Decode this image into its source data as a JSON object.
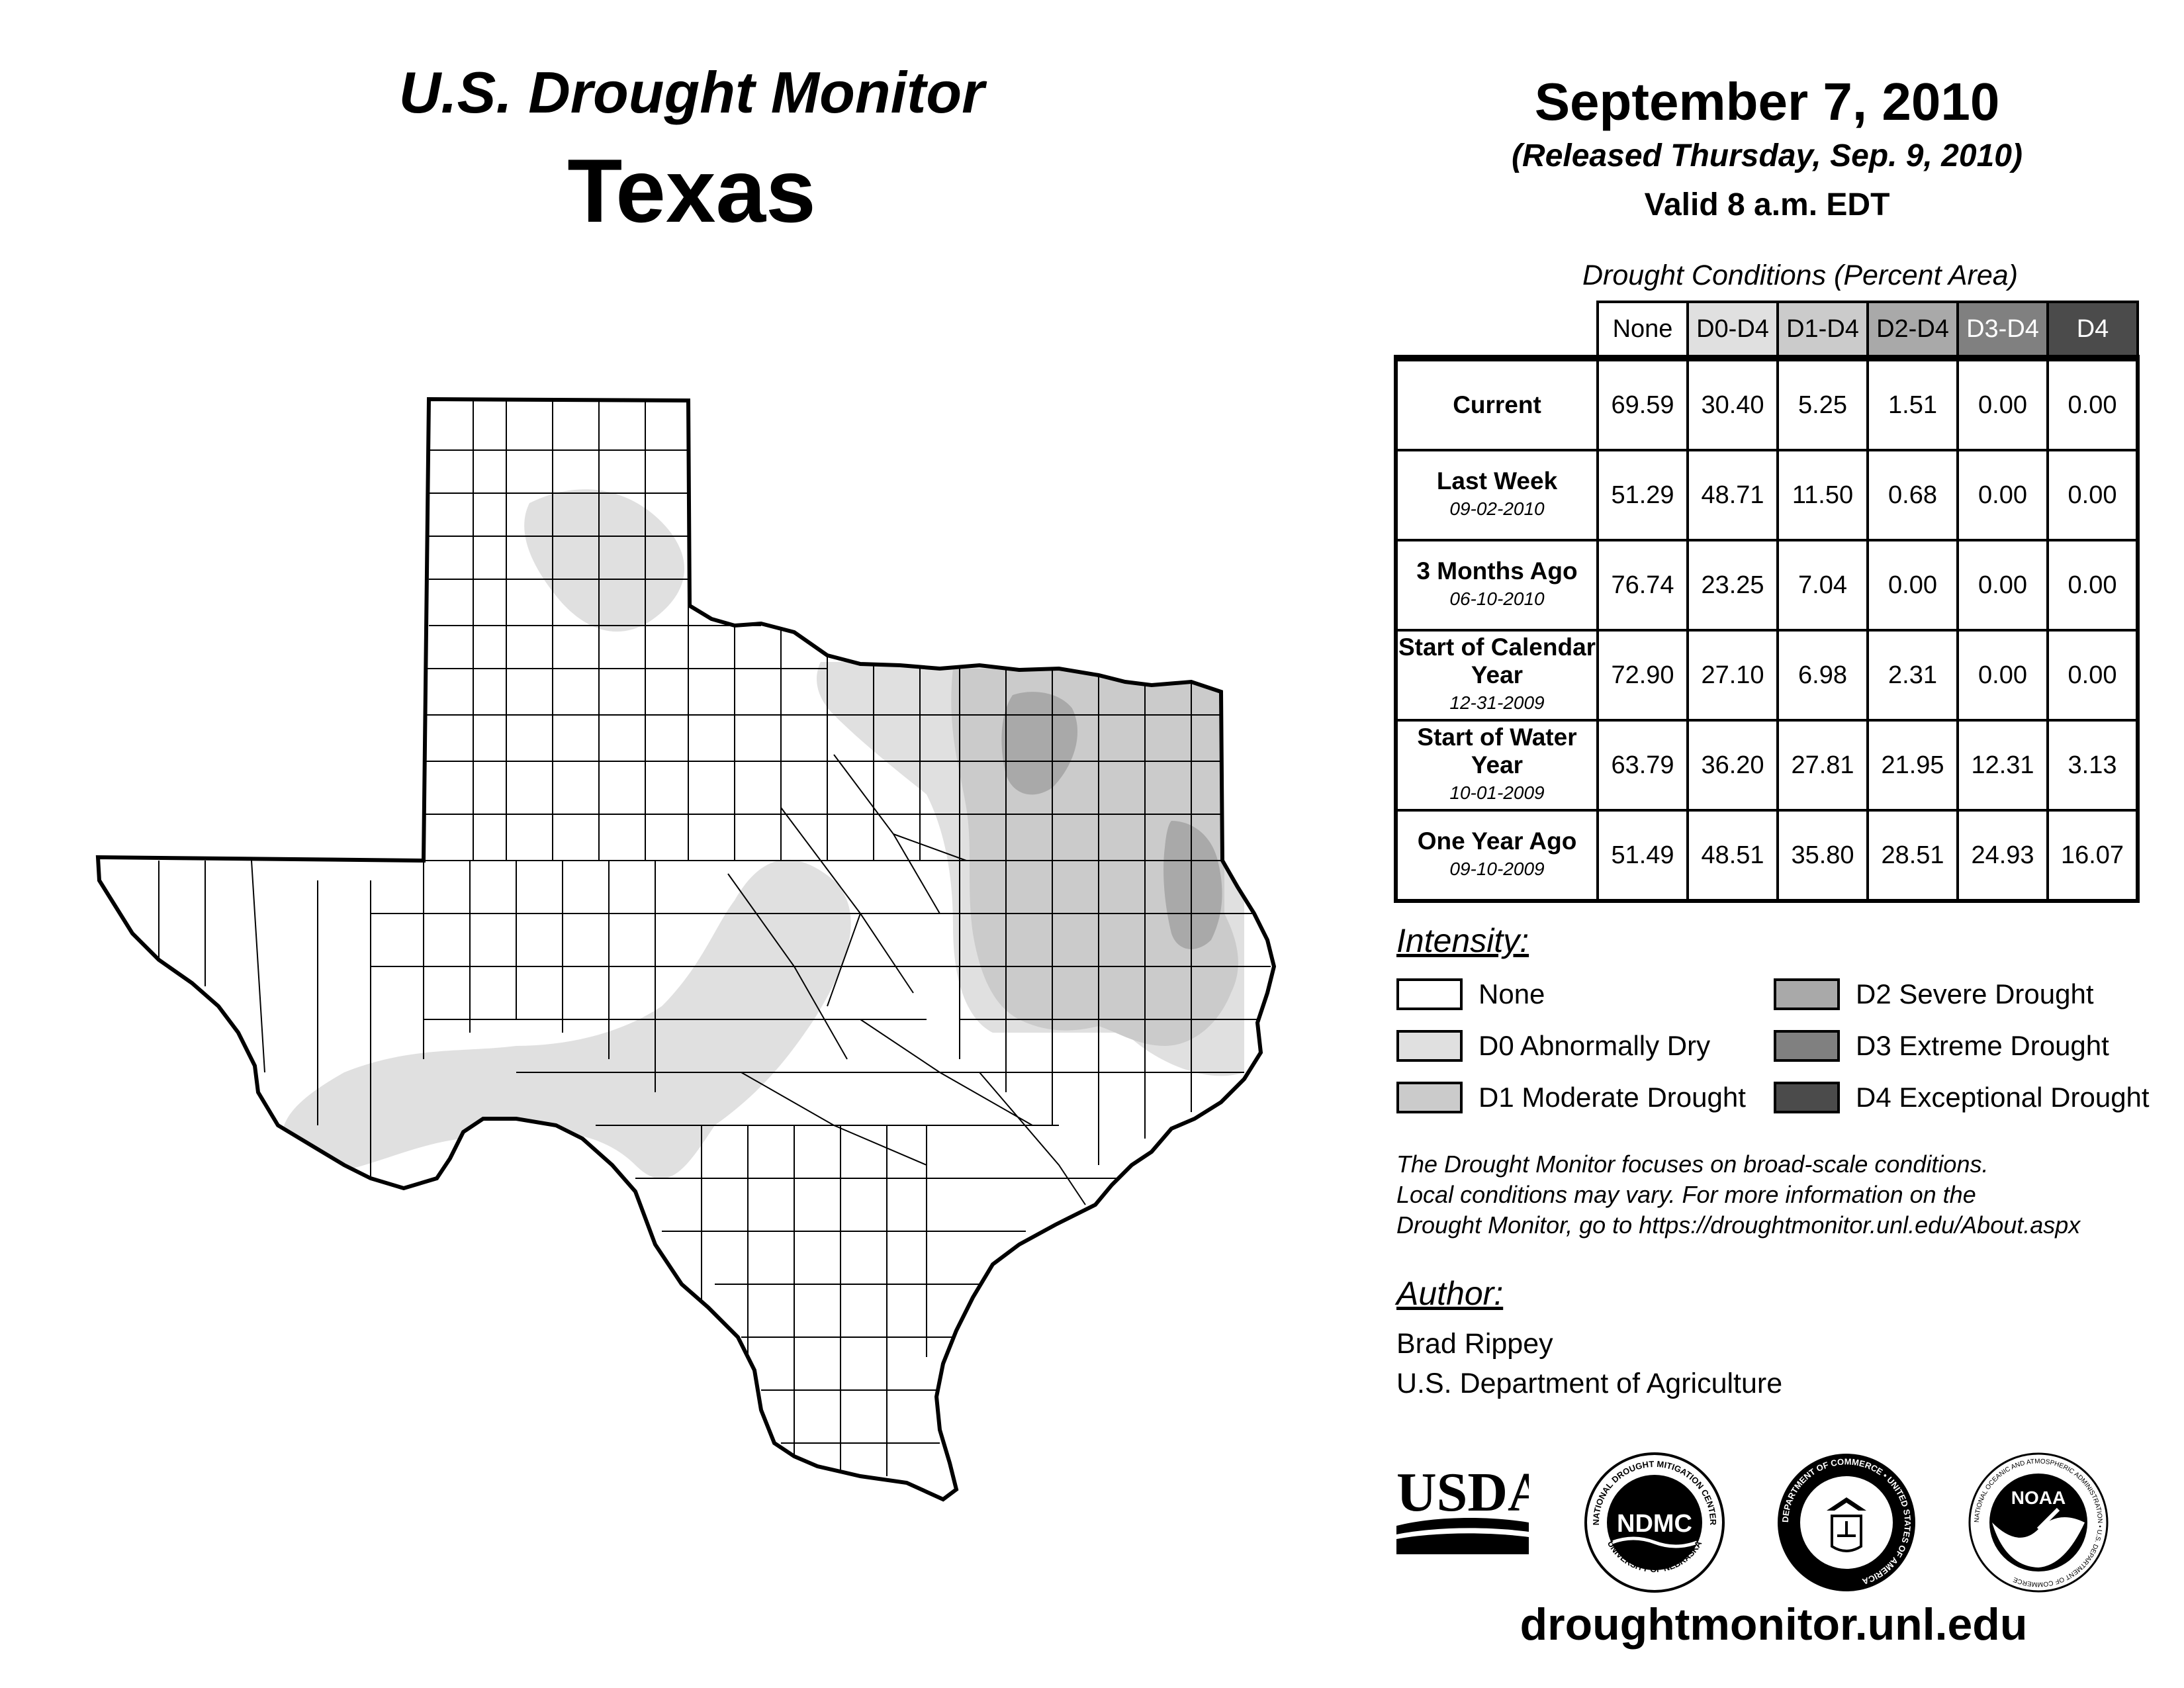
{
  "header": {
    "title": "U.S. Drought Monitor",
    "state": "Texas",
    "date": "September 7, 2010",
    "released": "(Released Thursday, Sep. 9, 2010)",
    "valid": "Valid 8 a.m. EDT"
  },
  "table": {
    "caption": "Drought Conditions (Percent Area)",
    "columns": [
      "None",
      "D0-D4",
      "D1-D4",
      "D2-D4",
      "D3-D4",
      "D4"
    ],
    "rows": [
      {
        "label": "Current",
        "sublabel": "",
        "values": [
          "69.59",
          "30.40",
          "5.25",
          "1.51",
          "0.00",
          "0.00"
        ]
      },
      {
        "label": "Last Week",
        "sublabel": "09-02-2010",
        "values": [
          "51.29",
          "48.71",
          "11.50",
          "0.68",
          "0.00",
          "0.00"
        ]
      },
      {
        "label": "3 Months Ago",
        "sublabel": "06-10-2010",
        "values": [
          "76.74",
          "23.25",
          "7.04",
          "0.00",
          "0.00",
          "0.00"
        ]
      },
      {
        "label": "Start of Calendar Year",
        "sublabel": "12-31-2009",
        "values": [
          "72.90",
          "27.10",
          "6.98",
          "2.31",
          "0.00",
          "0.00"
        ]
      },
      {
        "label": "Start of Water Year",
        "sublabel": "10-01-2009",
        "values": [
          "63.79",
          "36.20",
          "27.81",
          "21.95",
          "12.31",
          "3.13"
        ]
      },
      {
        "label": "One Year Ago",
        "sublabel": "09-10-2009",
        "values": [
          "51.49",
          "48.51",
          "35.80",
          "28.51",
          "24.93",
          "16.07"
        ]
      }
    ],
    "header_colors": [
      "#ffffff",
      "#e0e0e0",
      "#cbcbcb",
      "#a9a9a9",
      "#808080",
      "#4b4b4b"
    ]
  },
  "legend": {
    "title": "Intensity:",
    "items": [
      {
        "label": "None",
        "color": "#ffffff"
      },
      {
        "label": "D0 Abnormally Dry",
        "color": "#e0e0e0"
      },
      {
        "label": "D1 Moderate Drought",
        "color": "#cbcbcb"
      },
      {
        "label": "D2 Severe Drought",
        "color": "#a9a9a9"
      },
      {
        "label": "D3 Extreme Drought",
        "color": "#808080"
      },
      {
        "label": "D4 Exceptional Drought",
        "color": "#4b4b4b"
      }
    ]
  },
  "note": {
    "line1": "The Drought Monitor focuses on broad-scale conditions.",
    "line2": "Local conditions may vary. For more information on the",
    "line3": "Drought Monitor, go to https://droughtmonitor.unl.edu/About.aspx"
  },
  "author": {
    "title": "Author:",
    "name": "Brad Rippey",
    "org": "U.S. Department of Agriculture"
  },
  "logos": {
    "usda": "USDA",
    "ndmc": "NDMC",
    "ndmc_ring_top": "NATIONAL DROUGHT MITIGATION CENTER",
    "ndmc_ring_bottom": "UNIVERSITY OF NEBRASKA",
    "doc_ring": "DEPARTMENT OF COMMERCE • UNITED STATES OF AMERICA",
    "noaa": "NOAA",
    "noaa_ring": "NATIONAL OCEANIC AND ATMOSPHERIC ADMINISTRATION • U.S. DEPARTMENT OF COMMERCE"
  },
  "footer": {
    "url": "droughtmonitor.unl.edu"
  }
}
